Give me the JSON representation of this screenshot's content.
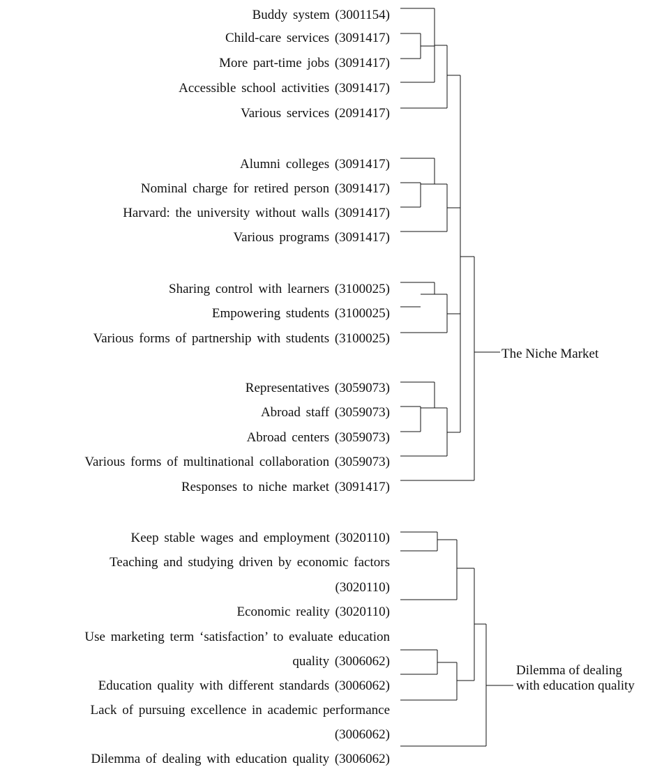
{
  "items": [
    "Buddy system (3001154)",
    "Child-care services (3091417)",
    "More part-time jobs (3091417)",
    "Accessible school activities (3091417)",
    "Various services (2091417)",
    "Alumni colleges (3091417)",
    "Nominal charge for retired person (3091417)",
    "Harvard: the university without walls (3091417)",
    "Various programs (3091417)",
    "Sharing control with learners (3100025)",
    "Empowering students (3100025)",
    "Various forms of partnership with students (3100025)",
    "Representatives (3059073)",
    "Abroad staff (3059073)",
    "Abroad centers (3059073)",
    "Various forms of multinational collaboration (3059073)",
    "Responses to niche market (3091417)",
    "Keep stable wages and employment (3020110)",
    "Teaching and studying driven by economic factors",
    "(3020110)",
    "Economic reality (3020110)",
    "Use marketing term ‘satisfaction’ to evaluate education",
    "quality (3006062)",
    "Education quality with different standards (3006062)",
    "Lack of pursuing excellence in academic performance",
    "(3006062)",
    "Dilemma of dealing with education quality (3006062)"
  ],
  "groups": {
    "niche_market": "The Niche Market",
    "quality_line1": "Dilemma of dealing",
    "quality_line2": "with education quality"
  },
  "colors": {
    "ink": "#111111",
    "background": "#ffffff"
  }
}
